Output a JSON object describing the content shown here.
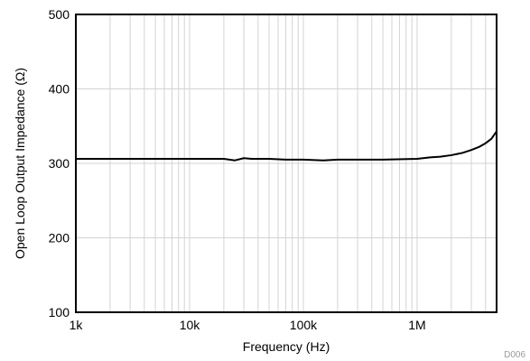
{
  "chart_data": {
    "type": "line",
    "title": "",
    "xlabel": "Frequency (Hz)",
    "ylabel": "Open Loop Output Impedance (Ω)",
    "xscale": "log",
    "xlim": [
      1000,
      5000000
    ],
    "ylim": [
      100,
      500
    ],
    "grid": true,
    "legend": "none",
    "x_ticks": [
      {
        "value": 1000,
        "label": "1k"
      },
      {
        "value": 10000,
        "label": "10k"
      },
      {
        "value": 100000,
        "label": "100k"
      },
      {
        "value": 1000000,
        "label": "1M"
      }
    ],
    "y_ticks": [
      {
        "value": 100,
        "label": "100"
      },
      {
        "value": 200,
        "label": "200"
      },
      {
        "value": 300,
        "label": "300"
      },
      {
        "value": 400,
        "label": "400"
      },
      {
        "value": 500,
        "label": "500"
      }
    ],
    "series": [
      {
        "color": "#000000",
        "x": [
          1000,
          2000,
          3000,
          5000,
          10000,
          15000,
          20000,
          25000,
          30000,
          35000,
          50000,
          70000,
          100000,
          150000,
          200000,
          300000,
          500000,
          1000000,
          1300000,
          1600000,
          2000000,
          2500000,
          3000000,
          3500000,
          4000000,
          4500000,
          5000000
        ],
        "y": [
          306,
          306,
          306,
          306,
          306,
          306,
          306,
          304,
          307,
          306,
          306,
          305,
          305,
          304,
          305,
          305,
          305,
          306,
          308,
          309,
          311,
          314,
          318,
          322,
          327,
          333,
          343
        ]
      }
    ],
    "annotations": [
      {
        "text": "D006"
      }
    ]
  },
  "colors": {
    "grid": "#d3d3d3",
    "frame": "#000000",
    "line": "#000000",
    "figure_id": "#9a9a9a"
  }
}
